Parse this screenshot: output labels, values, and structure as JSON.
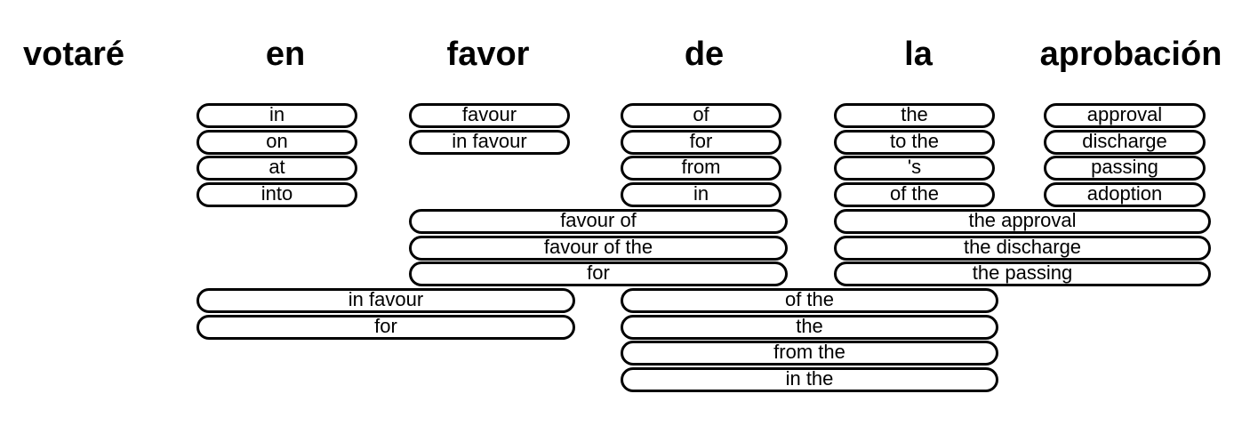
{
  "source_words": [
    "votaré",
    "en",
    "favor",
    "de",
    "la",
    "aprobación"
  ],
  "phrase_groups": [
    {
      "span": "en",
      "options": [
        "in",
        "on",
        "at",
        "into"
      ]
    },
    {
      "span": "favor",
      "options": [
        "favour",
        "in favour"
      ]
    },
    {
      "span": "de",
      "options": [
        "of",
        "for",
        "from",
        "in"
      ]
    },
    {
      "span": "la",
      "options": [
        "the",
        "to the",
        "'s",
        "of the"
      ]
    },
    {
      "span": "aprobación",
      "options": [
        "approval",
        "discharge",
        "passing",
        "adoption"
      ]
    },
    {
      "span": "favor de",
      "options": [
        "favour of",
        "favour of the",
        "for"
      ]
    },
    {
      "span": "la aprobación",
      "options": [
        "the approval",
        "the discharge",
        "the passing"
      ]
    },
    {
      "span": "en favor",
      "options": [
        "in favour",
        "for"
      ]
    },
    {
      "span": "de la",
      "options": [
        "of the",
        "the",
        "from the",
        "in the"
      ]
    }
  ]
}
